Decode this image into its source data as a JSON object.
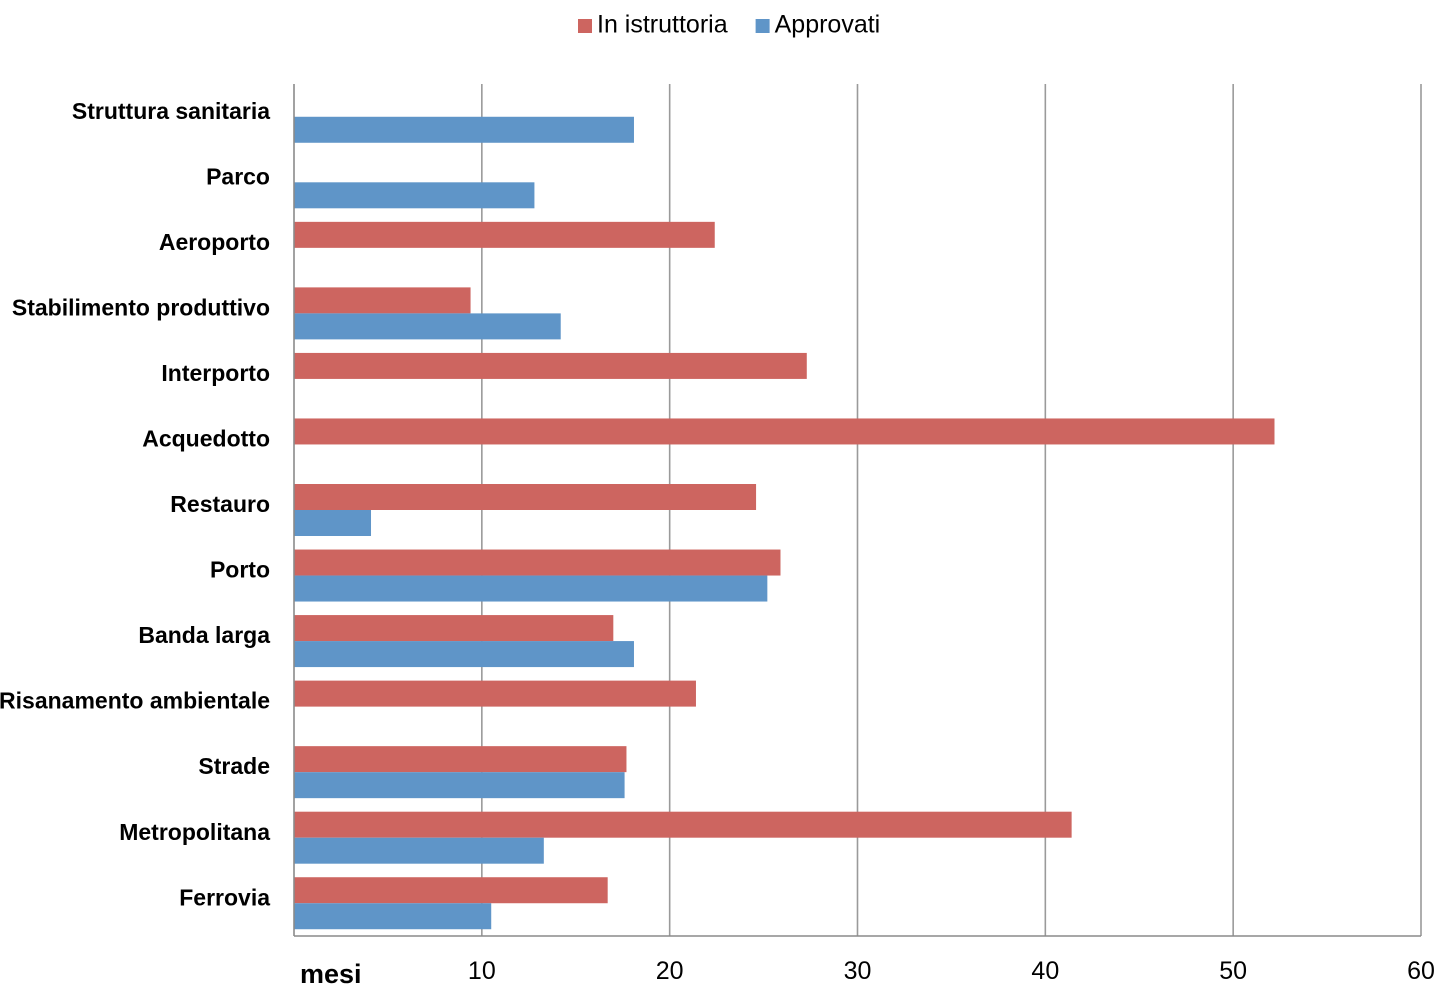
{
  "chart_data": {
    "type": "bar",
    "orientation": "horizontal",
    "categories": [
      "Struttura sanitaria",
      "Parco",
      "Aeroporto",
      "Stabilimento produttivo",
      "Interporto",
      "Acquedotto",
      "Restauro",
      "Porto",
      "Banda larga",
      "Risanamento ambientale",
      "Strade",
      "Metropolitana",
      "Ferrovia"
    ],
    "series": [
      {
        "name": "In istruttoria",
        "color": "#cd6560",
        "values": [
          null,
          null,
          22.4,
          9.4,
          27.3,
          52.2,
          24.6,
          25.9,
          17.0,
          21.4,
          17.7,
          41.4,
          16.7
        ]
      },
      {
        "name": "Approvati",
        "color": "#5f95c8",
        "values": [
          18.1,
          12.8,
          null,
          14.2,
          null,
          null,
          4.1,
          25.2,
          18.1,
          null,
          17.6,
          13.3,
          10.5
        ]
      }
    ],
    "x_ticks": [
      "10",
      "20",
      "30",
      "40",
      "50",
      "60"
    ],
    "xlabel": "mesi",
    "ylabel": "",
    "title": "",
    "xlim": [
      0,
      60
    ],
    "grid": true,
    "grid_color": "#9a9a9a",
    "legend_position": "top-center"
  }
}
